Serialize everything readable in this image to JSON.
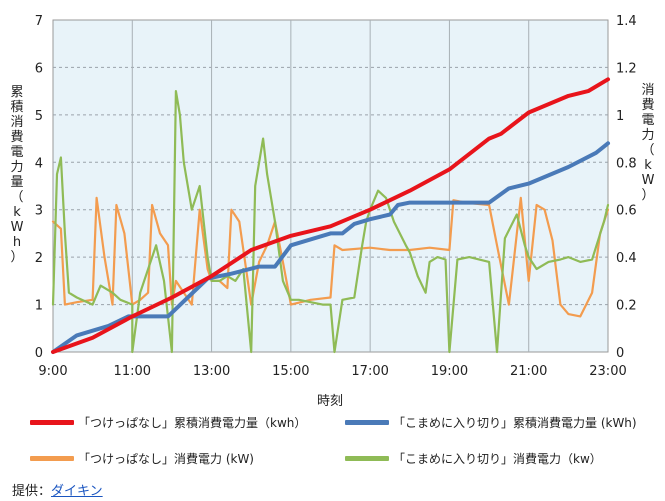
{
  "chart_data": {
    "type": "line",
    "xlabel": "時刻",
    "ylabel_left": "累積消費電力量（kWh）",
    "ylabel_right": "消費電力（kW）",
    "x_ticks": [
      "9:00",
      "11:00",
      "13:00",
      "15:00",
      "17:00",
      "19:00",
      "21:00",
      "23:00"
    ],
    "x_range_hours": [
      9,
      23
    ],
    "ylim_left": [
      0,
      7
    ],
    "ylim_right": [
      0,
      1.4
    ],
    "left_ticks": [
      "0",
      "1",
      "2",
      "3",
      "4",
      "5",
      "6",
      "7"
    ],
    "right_ticks": [
      "0",
      "0.2",
      "0.4",
      "0.6",
      "0.8",
      "1",
      "1.2",
      "1.4"
    ],
    "grid": true,
    "series": [
      {
        "name": "「つけっぱなし」累積消費電力量（kwh）",
        "axis": "left",
        "color": "#e8141b",
        "points": [
          [
            9.0,
            0
          ],
          [
            10.0,
            0.3
          ],
          [
            11.0,
            0.75
          ],
          [
            12.0,
            1.15
          ],
          [
            13.0,
            1.6
          ],
          [
            14.0,
            2.15
          ],
          [
            15.0,
            2.45
          ],
          [
            16.0,
            2.65
          ],
          [
            17.0,
            3.0
          ],
          [
            18.0,
            3.4
          ],
          [
            19.0,
            3.85
          ],
          [
            20.0,
            4.5
          ],
          [
            20.3,
            4.6
          ],
          [
            21.0,
            5.05
          ],
          [
            22.0,
            5.4
          ],
          [
            22.5,
            5.5
          ],
          [
            23.0,
            5.75
          ]
        ]
      },
      {
        "name": "「こまめに入り切り」累積消費電力量 (kWh)",
        "axis": "left",
        "color": "#4a7ab8",
        "points": [
          [
            9.0,
            0
          ],
          [
            9.6,
            0.35
          ],
          [
            10.4,
            0.55
          ],
          [
            10.9,
            0.75
          ],
          [
            11.9,
            0.75
          ],
          [
            12.9,
            1.55
          ],
          [
            13.5,
            1.65
          ],
          [
            14.2,
            1.8
          ],
          [
            14.6,
            1.8
          ],
          [
            15.0,
            2.25
          ],
          [
            16.0,
            2.5
          ],
          [
            16.3,
            2.5
          ],
          [
            16.6,
            2.7
          ],
          [
            17.0,
            2.8
          ],
          [
            17.5,
            2.9
          ],
          [
            17.7,
            3.1
          ],
          [
            18.0,
            3.15
          ],
          [
            19.0,
            3.15
          ],
          [
            20.0,
            3.15
          ],
          [
            20.5,
            3.45
          ],
          [
            21.0,
            3.55
          ],
          [
            22.0,
            3.9
          ],
          [
            22.7,
            4.2
          ],
          [
            23.0,
            4.4
          ]
        ]
      },
      {
        "name": "「つけっぱなし」消費電力 (kW)",
        "axis": "right",
        "color": "#f39c4f",
        "points": [
          [
            9.0,
            0.55
          ],
          [
            9.2,
            0.52
          ],
          [
            9.3,
            0.2
          ],
          [
            9.6,
            0.21
          ],
          [
            10.0,
            0.22
          ],
          [
            10.1,
            0.65
          ],
          [
            10.3,
            0.4
          ],
          [
            10.5,
            0.2
          ],
          [
            10.6,
            0.62
          ],
          [
            10.8,
            0.5
          ],
          [
            11.0,
            0.2
          ],
          [
            11.2,
            0.22
          ],
          [
            11.4,
            0.25
          ],
          [
            11.5,
            0.62
          ],
          [
            11.7,
            0.5
          ],
          [
            11.9,
            0.45
          ],
          [
            12.0,
            0.2
          ],
          [
            12.1,
            0.3
          ],
          [
            12.3,
            0.25
          ],
          [
            12.5,
            0.2
          ],
          [
            12.7,
            0.6
          ],
          [
            12.9,
            0.35
          ],
          [
            13.0,
            0.3
          ],
          [
            13.2,
            0.3
          ],
          [
            13.4,
            0.27
          ],
          [
            13.5,
            0.6
          ],
          [
            13.7,
            0.55
          ],
          [
            14.0,
            0.2
          ],
          [
            14.2,
            0.38
          ],
          [
            14.4,
            0.45
          ],
          [
            14.6,
            0.55
          ],
          [
            14.8,
            0.38
          ],
          [
            15.0,
            0.2
          ],
          [
            15.5,
            0.22
          ],
          [
            16.0,
            0.23
          ],
          [
            16.1,
            0.45
          ],
          [
            16.3,
            0.43
          ],
          [
            17.0,
            0.44
          ],
          [
            17.5,
            0.43
          ],
          [
            18.0,
            0.43
          ],
          [
            18.5,
            0.44
          ],
          [
            19.0,
            0.43
          ],
          [
            19.1,
            0.64
          ],
          [
            19.4,
            0.63
          ],
          [
            20.0,
            0.62
          ],
          [
            20.2,
            0.45
          ],
          [
            20.5,
            0.2
          ],
          [
            20.8,
            0.65
          ],
          [
            21.0,
            0.3
          ],
          [
            21.2,
            0.62
          ],
          [
            21.4,
            0.6
          ],
          [
            21.6,
            0.47
          ],
          [
            21.8,
            0.2
          ],
          [
            22.0,
            0.16
          ],
          [
            22.3,
            0.15
          ],
          [
            22.6,
            0.25
          ],
          [
            22.8,
            0.5
          ],
          [
            23.0,
            0.6
          ]
        ]
      },
      {
        "name": "「こまめに入り切り」消費電力（kw）",
        "axis": "right",
        "color": "#8fbb56",
        "points": [
          [
            9.0,
            0.2
          ],
          [
            9.1,
            0.75
          ],
          [
            9.2,
            0.82
          ],
          [
            9.3,
            0.5
          ],
          [
            9.4,
            0.25
          ],
          [
            9.6,
            0.23
          ],
          [
            10.0,
            0.2
          ],
          [
            10.2,
            0.28
          ],
          [
            10.5,
            0.25
          ],
          [
            10.7,
            0.22
          ],
          [
            11.0,
            0.2
          ],
          [
            11.0,
            0.0
          ],
          [
            11.2,
            0.25
          ],
          [
            11.6,
            0.45
          ],
          [
            11.8,
            0.3
          ],
          [
            12.0,
            0.0
          ],
          [
            12.1,
            1.1
          ],
          [
            12.2,
            1.0
          ],
          [
            12.3,
            0.8
          ],
          [
            12.5,
            0.6
          ],
          [
            12.7,
            0.7
          ],
          [
            12.9,
            0.4
          ],
          [
            13.0,
            0.3
          ],
          [
            13.2,
            0.3
          ],
          [
            13.4,
            0.32
          ],
          [
            13.6,
            0.3
          ],
          [
            13.8,
            0.35
          ],
          [
            14.0,
            0.0
          ],
          [
            14.1,
            0.7
          ],
          [
            14.3,
            0.9
          ],
          [
            14.4,
            0.75
          ],
          [
            14.6,
            0.55
          ],
          [
            14.8,
            0.3
          ],
          [
            15.0,
            0.22
          ],
          [
            15.2,
            0.22
          ],
          [
            15.5,
            0.21
          ],
          [
            15.8,
            0.2
          ],
          [
            16.0,
            0.2
          ],
          [
            16.1,
            0.0
          ],
          [
            16.3,
            0.22
          ],
          [
            16.6,
            0.23
          ],
          [
            16.8,
            0.45
          ],
          [
            16.9,
            0.55
          ],
          [
            17.0,
            0.6
          ],
          [
            17.2,
            0.68
          ],
          [
            17.4,
            0.65
          ],
          [
            17.6,
            0.55
          ],
          [
            17.9,
            0.45
          ],
          [
            18.0,
            0.42
          ],
          [
            18.2,
            0.32
          ],
          [
            18.4,
            0.25
          ],
          [
            18.5,
            0.38
          ],
          [
            18.7,
            0.4
          ],
          [
            18.9,
            0.39
          ],
          [
            19.0,
            0.0
          ],
          [
            19.2,
            0.39
          ],
          [
            19.5,
            0.4
          ],
          [
            20.0,
            0.38
          ],
          [
            20.2,
            0.0
          ],
          [
            20.4,
            0.48
          ],
          [
            20.7,
            0.58
          ],
          [
            20.9,
            0.45
          ],
          [
            21.0,
            0.4
          ],
          [
            21.2,
            0.35
          ],
          [
            21.5,
            0.38
          ],
          [
            21.8,
            0.39
          ],
          [
            22.0,
            0.4
          ],
          [
            22.3,
            0.38
          ],
          [
            22.6,
            0.39
          ],
          [
            22.9,
            0.55
          ],
          [
            23.0,
            0.62
          ]
        ]
      }
    ]
  },
  "legend": [
    "「つけっぱなし」累積消費電力量（kwh）",
    "「こまめに入り切り」累積消費電力量 (kWh)",
    "「つけっぱなし」消費電力 (kW)",
    "「こまめに入り切り」消費電力（kw）"
  ],
  "credit": {
    "prefix": "提供：",
    "link": "ダイキン"
  }
}
